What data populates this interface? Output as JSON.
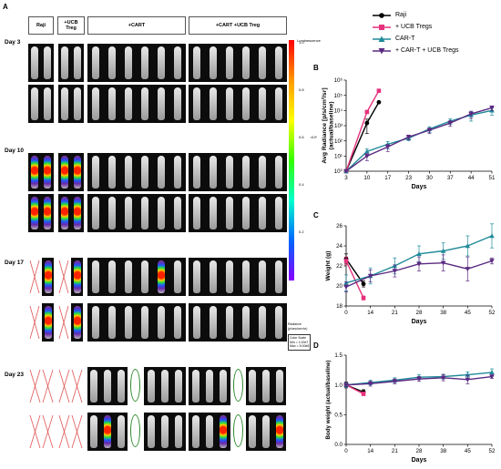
{
  "panel_a": {
    "letter": "A",
    "groups": [
      "Raji",
      "+UCB Treg",
      "+CART",
      "+CART +UCB Treg"
    ],
    "days": [
      "Day 3",
      "Day 10",
      "Day 17",
      "Day 23"
    ],
    "colorbar": {
      "title": "Luminescence",
      "ticks": [
        "1.0",
        "0.8",
        "0.6",
        "0.4",
        "0.2"
      ],
      "exponent": "x10⁸",
      "unit_line1": "Radiance",
      "unit_line2": "(p/sec/cm²/sr)",
      "scale_title": "Color Scale",
      "scale_min": "Min = 1.00e7",
      "scale_max": "Max = 5.00e8",
      "colors": [
        "#ff0000",
        "#ff9900",
        "#ffff00",
        "#33ff00",
        "#00ffcc",
        "#0066ff",
        "#8800ff"
      ]
    }
  },
  "legend": [
    "Raji",
    "+ UCB Tregs",
    "CAR-T",
    "+ CAR-T + UCB Tregs"
  ],
  "chart_data": [
    {
      "panel": "B",
      "type": "line",
      "xlabel": "Days",
      "ylabel": "Avg Radiance [p/s/cm²/sr] (actual/baseline)",
      "x": [
        3,
        10,
        17,
        23,
        30,
        37,
        44,
        51
      ],
      "y_scale": "log",
      "ylim": [
        1,
        1000000
      ],
      "yticks": [
        "10⁰",
        "10¹",
        "10²",
        "10³",
        "10⁴",
        "10⁵",
        "10⁶"
      ],
      "series": [
        {
          "name": "Raji",
          "color": "#000000",
          "x": [
            3,
            10,
            14
          ],
          "values": [
            1,
            1500,
            35000
          ],
          "errors": [
            0,
            1200,
            0
          ]
        },
        {
          "name": "+ UCB Tregs",
          "color": "#e6327d",
          "x": [
            3,
            10,
            14
          ],
          "values": [
            1,
            8000,
            200000
          ],
          "errors": [
            0,
            0,
            0
          ]
        },
        {
          "name": "CAR-T",
          "color": "#1f8a99",
          "x": [
            3,
            10,
            17,
            23,
            30,
            37,
            44,
            51
          ],
          "values": [
            1,
            20,
            60,
            150,
            600,
            2000,
            5000,
            10000
          ],
          "errors": [
            0,
            10,
            30,
            50,
            250,
            800,
            3000,
            5000
          ]
        },
        {
          "name": "+ CAR-T + UCB Tregs",
          "color": "#5a2a82",
          "x": [
            3,
            10,
            17,
            23,
            30,
            37,
            44,
            51
          ],
          "values": [
            1,
            10,
            40,
            180,
            500,
            1500,
            6000,
            15000
          ],
          "errors": [
            0,
            5,
            20,
            60,
            200,
            600,
            3000,
            5000
          ]
        }
      ]
    },
    {
      "panel": "C",
      "type": "line",
      "xlabel": "Days",
      "ylabel": "Weight (g)",
      "x": [
        0,
        14,
        21,
        28,
        38,
        45,
        52
      ],
      "ylim": [
        18,
        26
      ],
      "yticks": [
        "18",
        "20",
        "22",
        "24",
        "26"
      ],
      "series": [
        {
          "name": "Raji",
          "color": "#000000",
          "x": [
            0,
            10
          ],
          "values": [
            22.7,
            20.2
          ],
          "errors": [
            0.5,
            0.3
          ]
        },
        {
          "name": "+ UCB Tregs",
          "color": "#e6327d",
          "x": [
            0,
            10
          ],
          "values": [
            22.5,
            18.8
          ],
          "errors": [
            0.4,
            0.2
          ]
        },
        {
          "name": "CAR-T",
          "color": "#1f8a99",
          "x": [
            0,
            14,
            21,
            28,
            38,
            45,
            52
          ],
          "values": [
            20.3,
            21.0,
            22.0,
            23.2,
            23.5,
            24.0,
            25.0
          ],
          "errors": [
            0.8,
            0.8,
            0.8,
            0.8,
            0.8,
            1.0,
            1.2
          ]
        },
        {
          "name": "+ CAR-T + UCB Tregs",
          "color": "#5a2a82",
          "x": [
            0,
            14,
            21,
            28,
            38,
            45,
            52
          ],
          "values": [
            19.9,
            21.0,
            21.5,
            22.2,
            22.3,
            21.7,
            22.5
          ],
          "errors": [
            0.5,
            0.6,
            0.6,
            0.7,
            0.8,
            1.2,
            0.3
          ]
        }
      ]
    },
    {
      "panel": "D",
      "type": "line",
      "xlabel": "Days",
      "ylabel": "Body weight (actual/baseline)",
      "x": [
        0,
        14,
        21,
        28,
        38,
        45,
        52
      ],
      "ylim": [
        0.0,
        1.5
      ],
      "yticks": [
        "0.0",
        "0.5",
        "1.0",
        "1.5"
      ],
      "series": [
        {
          "name": "Raji",
          "color": "#000000",
          "x": [
            0,
            10
          ],
          "values": [
            1.0,
            0.88
          ],
          "errors": [
            0.05,
            0.04
          ]
        },
        {
          "name": "+ UCB Tregs",
          "color": "#e6327d",
          "x": [
            0,
            10
          ],
          "values": [
            1.0,
            0.85
          ],
          "errors": [
            0.04,
            0.03
          ]
        },
        {
          "name": "CAR-T",
          "color": "#1f8a99",
          "x": [
            0,
            14,
            21,
            28,
            38,
            45,
            52
          ],
          "values": [
            1.0,
            1.04,
            1.08,
            1.13,
            1.14,
            1.17,
            1.21
          ],
          "errors": [
            0.04,
            0.04,
            0.04,
            0.04,
            0.04,
            0.05,
            0.06
          ]
        },
        {
          "name": "+ CAR-T + UCB Tregs",
          "color": "#5a2a82",
          "x": [
            0,
            14,
            21,
            28,
            38,
            45,
            52
          ],
          "values": [
            1.0,
            1.02,
            1.06,
            1.1,
            1.12,
            1.09,
            1.14
          ],
          "errors": [
            0.03,
            0.04,
            0.04,
            0.04,
            0.05,
            0.07,
            0.03
          ]
        }
      ]
    }
  ]
}
